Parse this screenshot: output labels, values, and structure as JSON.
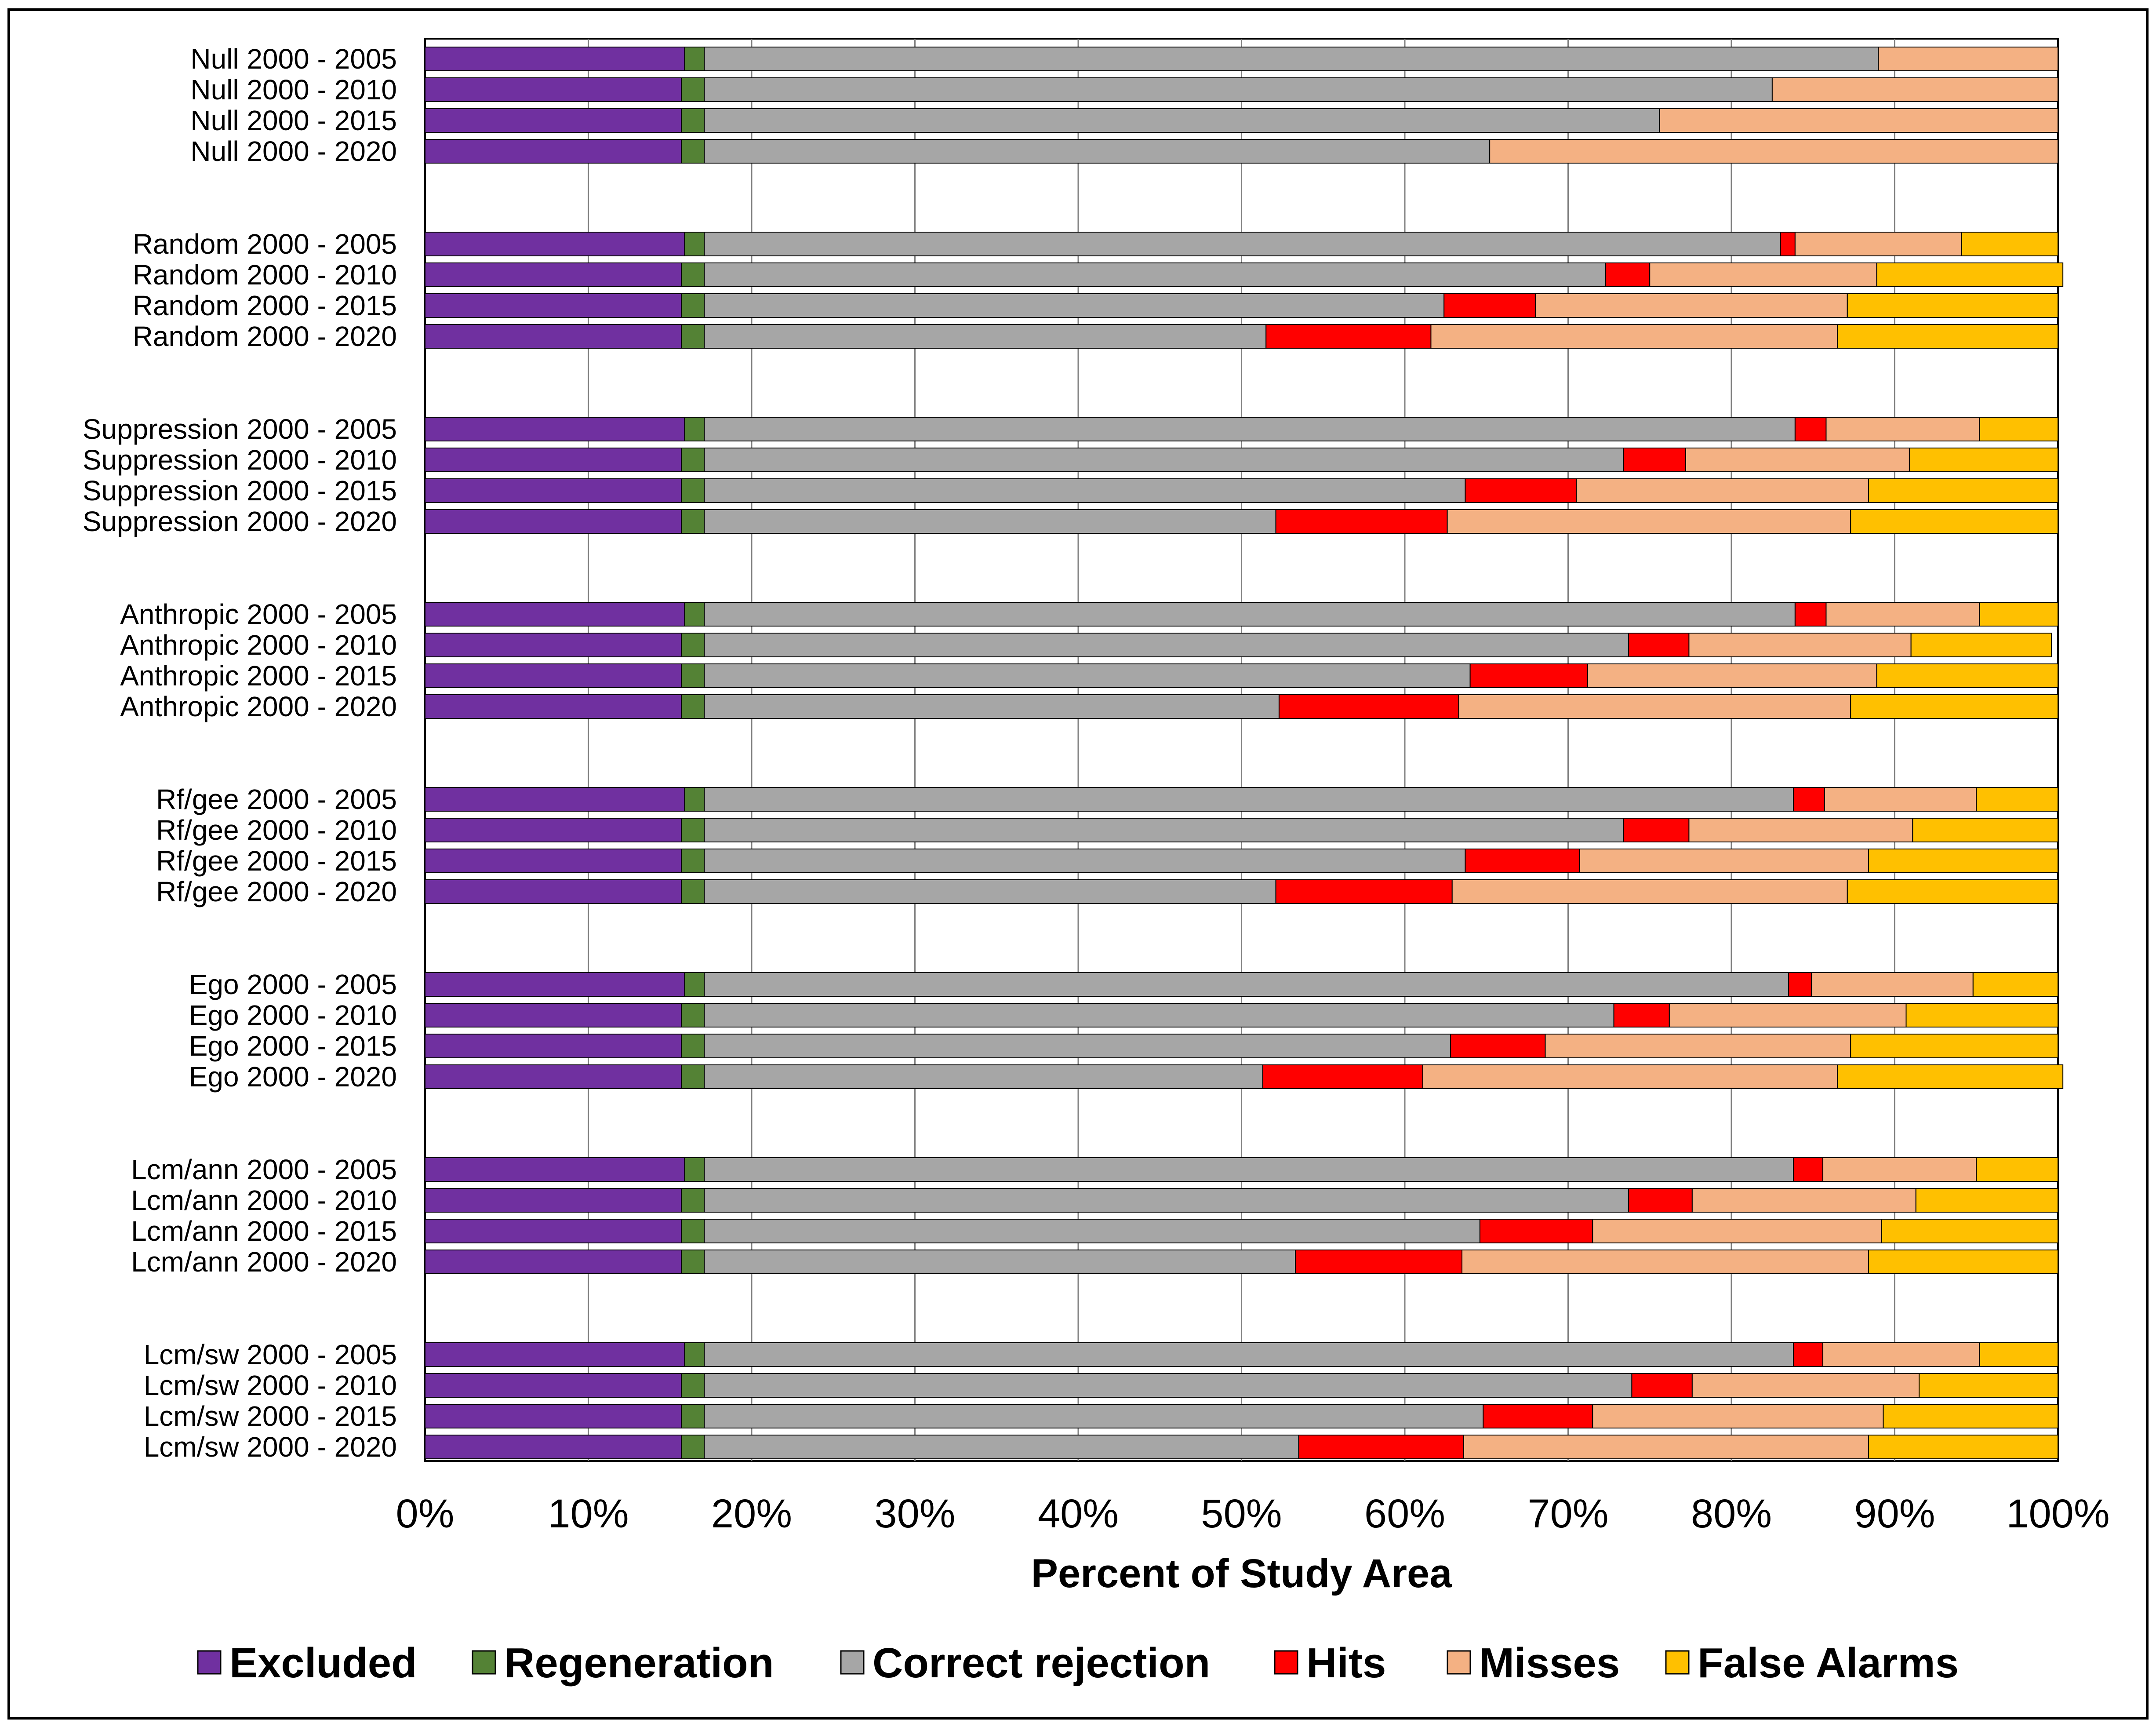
{
  "chart_data": {
    "type": "bar",
    "orientation": "horizontal",
    "stacked": true,
    "xlabel": "Percent of Study Area",
    "xlim": [
      0,
      100
    ],
    "x_ticks": [
      "0%",
      "10%",
      "20%",
      "30%",
      "40%",
      "50%",
      "60%",
      "70%",
      "80%",
      "90%",
      "100%"
    ],
    "grid": "vertical",
    "legend_position": "bottom",
    "categories": [
      "Null 2000 - 2005",
      "Null 2000 - 2010",
      "Null 2000 - 2015",
      "Null 2000 - 2020",
      "Random 2000 - 2005",
      "Random 2000 - 2010",
      "Random 2000 - 2015",
      "Random 2000 - 2020",
      "Suppression 2000 - 2005",
      "Suppression 2000 - 2010",
      "Suppression 2000 - 2015",
      "Suppression 2000 - 2020",
      "Anthropic 2000 - 2005",
      "Anthropic 2000 - 2010",
      "Anthropic 2000 - 2015",
      "Anthropic 2000 - 2020",
      "Rf/gee 2000 - 2005",
      "Rf/gee 2000 - 2010",
      "Rf/gee 2000 - 2015",
      "Rf/gee 2000 - 2020",
      "Ego 2000 - 2005",
      "Ego 2000 - 2010",
      "Ego 2000 - 2015",
      "Ego 2000 - 2020",
      "Lcm/ann 2000 - 2005",
      "Lcm/ann 2000 - 2010",
      "Lcm/ann 2000 - 2015",
      "Lcm/ann 2000 - 2020",
      "Lcm/sw 2000 - 2005",
      "Lcm/sw 2000 - 2010",
      "Lcm/sw 2000 - 2015",
      "Lcm/sw 2000 - 2020"
    ],
    "series": [
      {
        "name": "Excluded",
        "color": "#7030A0",
        "values": [
          15.9,
          15.7,
          15.7,
          15.7,
          15.9,
          15.7,
          15.7,
          15.7,
          15.9,
          15.7,
          15.7,
          15.7,
          15.9,
          15.7,
          15.7,
          15.7,
          15.9,
          15.7,
          15.7,
          15.7,
          15.9,
          15.7,
          15.7,
          15.7,
          15.9,
          15.7,
          15.7,
          15.7,
          15.9,
          15.7,
          15.7,
          15.7
        ]
      },
      {
        "name": "Regeneration",
        "color": "#548235",
        "values": [
          1.2,
          1.4,
          1.4,
          1.4,
          1.2,
          1.4,
          1.4,
          1.4,
          1.2,
          1.4,
          1.4,
          1.4,
          1.2,
          1.4,
          1.4,
          1.4,
          1.2,
          1.4,
          1.4,
          1.4,
          1.2,
          1.4,
          1.4,
          1.4,
          1.2,
          1.4,
          1.4,
          1.4,
          1.2,
          1.4,
          1.4,
          1.4
        ]
      },
      {
        "name": "Correct rejection",
        "color": "#A6A6A6",
        "values": [
          71.9,
          65.4,
          58.5,
          48.1,
          65.9,
          55.2,
          45.3,
          34.4,
          66.8,
          56.3,
          46.6,
          35.0,
          66.8,
          56.6,
          46.9,
          35.2,
          66.7,
          56.3,
          46.6,
          35.0,
          66.4,
          55.7,
          45.7,
          34.2,
          66.7,
          56.6,
          47.5,
          36.2,
          66.7,
          56.8,
          47.7,
          36.4
        ]
      },
      {
        "name": "Hits",
        "color": "#FF0000",
        "values": [
          0,
          0,
          0,
          0,
          0.9,
          2.7,
          5.6,
          10.1,
          1.9,
          3.8,
          6.8,
          10.5,
          1.9,
          3.7,
          7.2,
          11.0,
          1.9,
          4.0,
          7.0,
          10.8,
          1.4,
          3.4,
          5.8,
          9.8,
          1.8,
          3.9,
          6.9,
          10.2,
          1.8,
          3.7,
          6.7,
          10.1
        ]
      },
      {
        "name": "Misses",
        "color": "#F4B183",
        "values": [
          11.0,
          17.5,
          24.4,
          34.8,
          10.2,
          13.9,
          19.1,
          24.9,
          9.4,
          13.7,
          17.9,
          24.7,
          9.4,
          13.6,
          17.7,
          24.0,
          9.3,
          13.7,
          17.7,
          24.2,
          9.9,
          14.5,
          18.7,
          25.4,
          9.4,
          13.7,
          17.7,
          24.9,
          9.6,
          13.9,
          17.8,
          24.8
        ]
      },
      {
        "name": "False Alarms",
        "color": "#FFC000",
        "values": [
          0,
          0,
          0,
          0,
          5.9,
          11.4,
          12.9,
          13.5,
          4.8,
          9.1,
          11.6,
          12.7,
          4.8,
          8.6,
          11.1,
          12.7,
          5.0,
          8.9,
          11.6,
          12.9,
          5.2,
          9.3,
          12.7,
          13.8,
          5.0,
          8.7,
          10.8,
          11.6,
          4.8,
          8.5,
          10.7,
          11.6
        ]
      }
    ]
  }
}
